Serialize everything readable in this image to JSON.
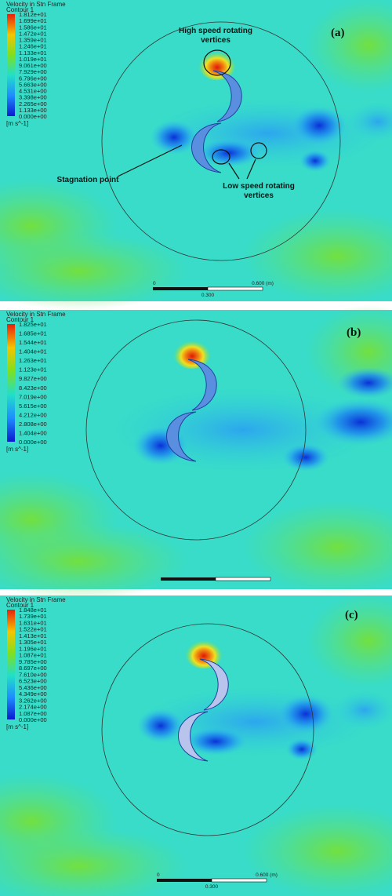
{
  "panels": [
    {
      "label": "(a)",
      "legend": {
        "title": "Velocity in Stn Frame",
        "subtitle": "Contour 1",
        "levels": [
          "1.812e+01",
          "1.699e+01",
          "1.586e+01",
          "1.472e+01",
          "1.359e+01",
          "1.246e+01",
          "1.133e+01",
          "1.019e+01",
          "9.061e+00",
          "7.929e+00",
          "6.796e+00",
          "5.663e+00",
          "4.531e+00",
          "3.398e+00",
          "2.265e+00",
          "1.133e+00",
          "0.000e+00"
        ],
        "unit": "[m s^-1]"
      },
      "scale": {
        "start": "0",
        "end": "0.600 (m)",
        "mid": "0.300"
      },
      "annotations": [
        {
          "lines": [
            "High speed rotating",
            "vertices"
          ]
        },
        {
          "lines": [
            "Stagnation point"
          ]
        },
        {
          "lines": [
            "Low speed  rotating",
            "vertices"
          ]
        }
      ]
    },
    {
      "label": "(b)",
      "legend": {
        "title": "Velocity in Stn Frame",
        "subtitle": "Contour 1",
        "levels": [
          "1.825e+01",
          "1.685e+01",
          "1.544e+01",
          "1.404e+01",
          "1.263e+01",
          "1.123e+01",
          "9.827e+00",
          "8.423e+00",
          "7.019e+00",
          "5.615e+00",
          "4.212e+00",
          "2.808e+00",
          "1.404e+00",
          "0.000e+00"
        ],
        "unit": "[m s^-1]"
      }
    },
    {
      "label": "(c)",
      "legend": {
        "title": "Velocity in Stn Frame",
        "subtitle": "Contour 1",
        "levels": [
          "1.848e+01",
          "1.739e+01",
          "1.631e+01",
          "1.522e+01",
          "1.413e+01",
          "1.305e+01",
          "1.196e+01",
          "1.087e+01",
          "9.785e+00",
          "8.697e+00",
          "7.610e+00",
          "6.523e+00",
          "5.436e+00",
          "4.349e+00",
          "3.262e+00",
          "2.174e+00",
          "1.087e+00",
          "0.000e+00"
        ],
        "unit": "[m s^-1]"
      },
      "scale": {
        "start": "0",
        "end": "0.600 (m)",
        "mid": "0.300"
      }
    }
  ]
}
